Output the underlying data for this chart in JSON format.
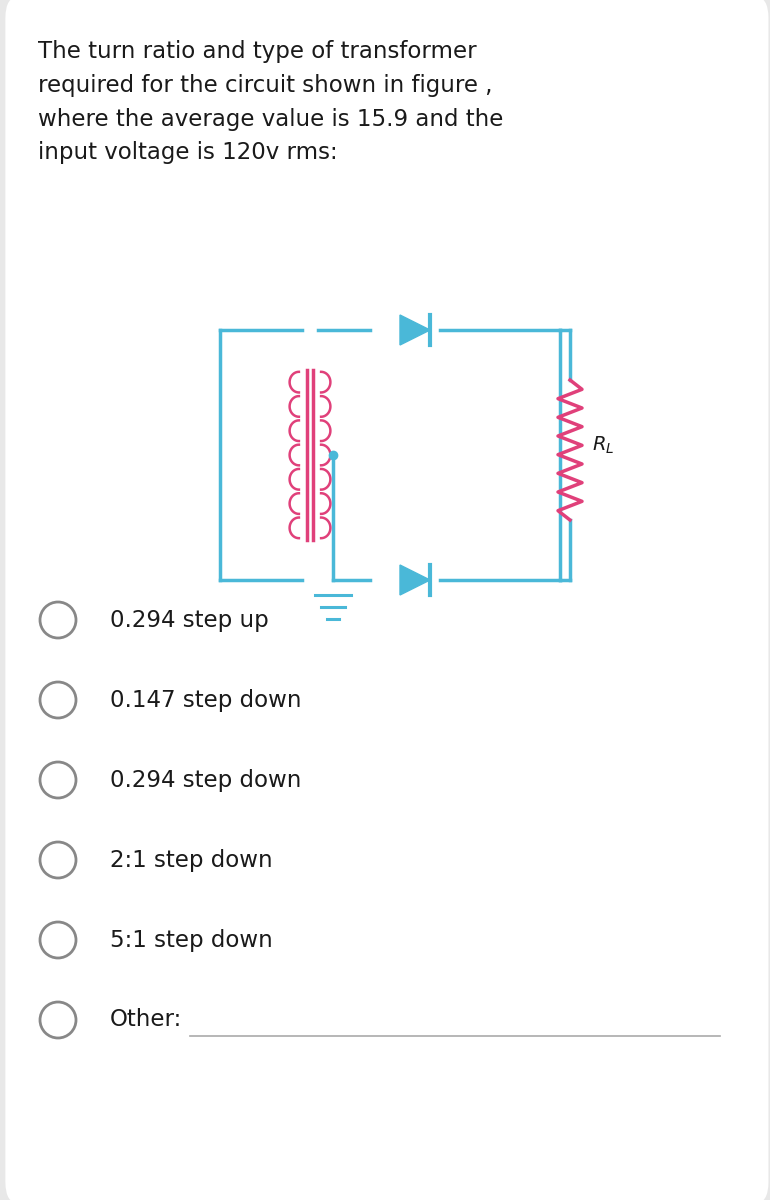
{
  "title": "The turn ratio and type of transformer\nrequired for the circuit shown in figure ,\nwhere the average value is 15.9 and the\ninput voltage is 120v rms:",
  "options": [
    "0.294 step up",
    "0.147 step down",
    "0.294 step down",
    "2:1 step down",
    "5:1 step down",
    "Other:"
  ],
  "bg_color": "#e8e8e8",
  "card_color": "#ffffff",
  "text_color": "#1a1a1a",
  "circuit_color": "#4ab8d8",
  "transformer_color": "#e0407a",
  "resistor_color": "#e0407a",
  "option_circle_color": "#888888",
  "title_fontsize": 16.5,
  "option_fontsize": 16.5
}
